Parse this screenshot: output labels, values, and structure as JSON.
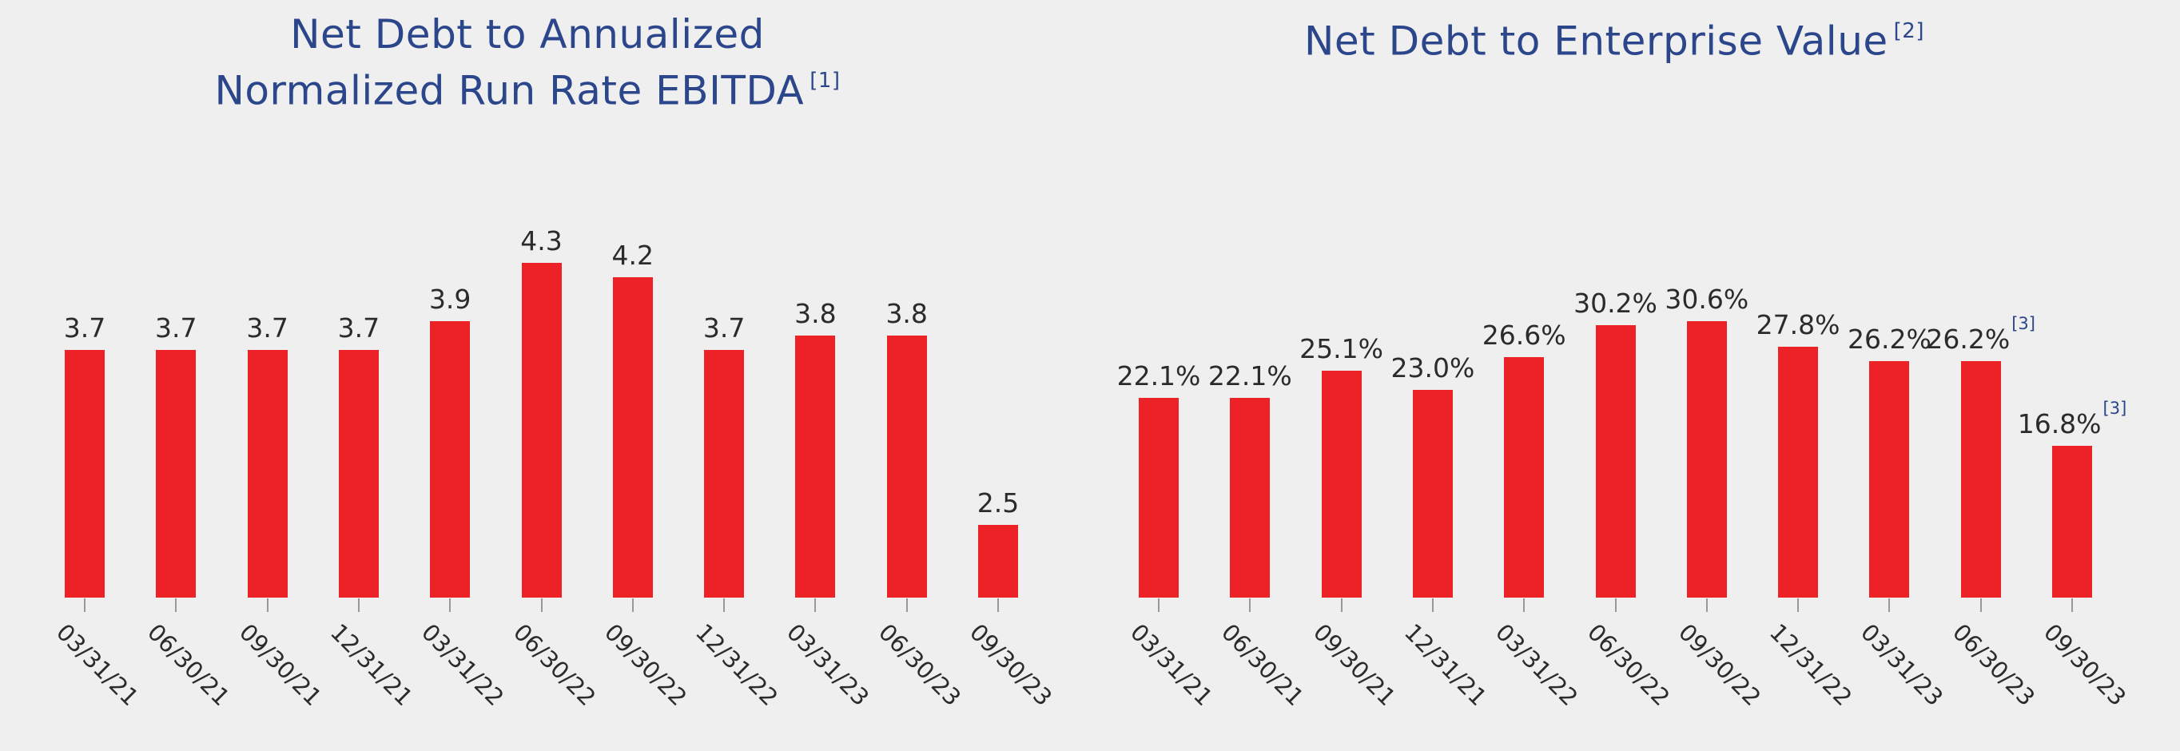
{
  "colors": {
    "background": "#efefef",
    "bar": "#ec2227",
    "title": "#2c468c",
    "label": "#2d2a2b",
    "tick": "#999999",
    "footnote": "#2c468c"
  },
  "chart_data": [
    {
      "type": "bar",
      "title": "Net Debt to Annualized Normalized Run Rate EBITDA",
      "title_lines": [
        "Net Debt to Annualized",
        "Normalized Run Rate EBITDA"
      ],
      "title_footnote": "[1]",
      "categories": [
        "03/31/21",
        "06/30/21",
        "09/30/21",
        "12/31/21",
        "03/31/22",
        "06/30/22",
        "09/30/22",
        "12/31/22",
        "03/31/23",
        "06/30/23",
        "09/30/23"
      ],
      "values": [
        3.7,
        3.7,
        3.7,
        3.7,
        3.9,
        4.3,
        4.2,
        3.7,
        3.8,
        3.8,
        2.5
      ],
      "data_labels": [
        "3.7",
        "3.7",
        "3.7",
        "3.7",
        "3.9",
        "4.3",
        "4.2",
        "3.7",
        "3.8",
        "3.8",
        "2.5"
      ],
      "label_footnotes": [
        "",
        "",
        "",
        "",
        "",
        "",
        "",
        "",
        "",
        "",
        ""
      ],
      "xlabel": "",
      "ylabel": "",
      "ylim": [
        2.0,
        4.3
      ],
      "grid": false,
      "legend": "none",
      "axes_visible": false
    },
    {
      "type": "bar",
      "title": "Net Debt to Enterprise Value",
      "title_lines": [
        "Net Debt to Enterprise Value"
      ],
      "title_footnote": "[2]",
      "categories": [
        "03/31/21",
        "06/30/21",
        "09/30/21",
        "12/31/21",
        "03/31/22",
        "06/30/22",
        "09/30/22",
        "12/31/22",
        "03/31/23",
        "06/30/23",
        "09/30/23"
      ],
      "values": [
        22.1,
        22.1,
        25.1,
        23.0,
        26.6,
        30.2,
        30.6,
        27.8,
        26.2,
        26.2,
        16.8
      ],
      "data_labels": [
        "22.1%",
        "22.1%",
        "25.1%",
        "23.0%",
        "26.6%",
        "30.2%",
        "30.6%",
        "27.8%",
        "26.2%",
        "26.2%",
        "16.8%"
      ],
      "label_footnotes": [
        "",
        "",
        "",
        "",
        "",
        "",
        "",
        "",
        "",
        "[3]",
        "[3]"
      ],
      "xlabel": "",
      "ylabel": "",
      "ylim": [
        0,
        30.6
      ],
      "grid": false,
      "legend": "none",
      "axes_visible": false
    }
  ]
}
